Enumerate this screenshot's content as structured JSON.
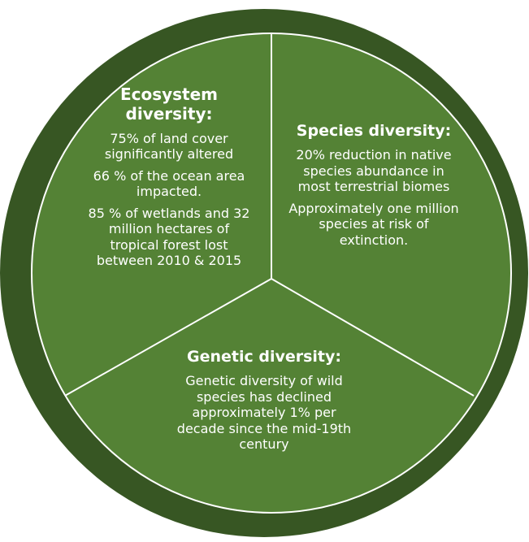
{
  "segments": [
    {
      "title": "Ecosystem diversity:",
      "lines": [
        "75% of land cover significantly altered",
        "66 % of the ocean area impacted.",
        "85 % of wetlands and 32 million hectares of tropical forest lost between 2010 & 2015"
      ]
    },
    {
      "title": "Species diversity:",
      "lines": [
        "20% reduction in native species abundance in most terrestrial biomes",
        "Approximately one million species at risk of extinction."
      ]
    },
    {
      "title": "Genetic diversity:",
      "lines": [
        "Genetic diversity of wild species has declined approximately 1% per decade since the mid-19th century"
      ]
    }
  ],
  "colors": {
    "outer_ring": "#375623",
    "segment_fill": "#548235",
    "divider": "#ffffff",
    "text": "#ffffff"
  }
}
